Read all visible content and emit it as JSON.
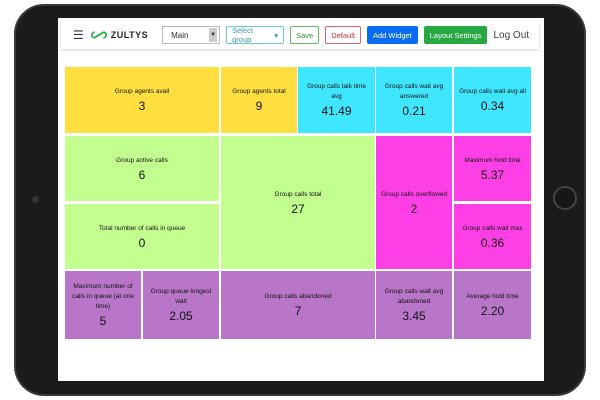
{
  "toolbar": {
    "brand": "ZULTYS",
    "view_select": "Main",
    "group_select": "Select group",
    "save": "Save",
    "default": "Default",
    "add_widget": "Add Widget",
    "layout_settings": "Layout Settings",
    "logout": "Log Out"
  },
  "widgets": [
    {
      "label": "Group agents avail",
      "value": "3",
      "color": "#ffdf3f"
    },
    {
      "label": "Group agents total",
      "value": "9",
      "color": "#ffdf3f"
    },
    {
      "label": "Group calls talk time avg",
      "value": "41.49",
      "color": "#3fe6ff"
    },
    {
      "label": "Group calls wait avg answered",
      "value": "0.21",
      "color": "#3fe6ff"
    },
    {
      "label": "Group calls wait avg all",
      "value": "0.34",
      "color": "#3fe6ff"
    },
    {
      "label": "Group active calls",
      "value": "6",
      "color": "#c2ff8f"
    },
    {
      "label": "Total number of calls in queue",
      "value": "0",
      "color": "#c2ff8f"
    },
    {
      "label": "Group calls total",
      "value": "27",
      "color": "#c2ff8f"
    },
    {
      "label": "Group calls overflowed",
      "value": "2",
      "color": "#ff3fe6"
    },
    {
      "label": "Maximum hold time",
      "value": "5.37",
      "color": "#ff3fe6"
    },
    {
      "label": "Group calls wait max",
      "value": "0.36",
      "color": "#ff3fe6"
    },
    {
      "label": "Maximum number of calls in queue (at one time)",
      "value": "5",
      "color": "#b976c9"
    },
    {
      "label": "Group queue longest wait",
      "value": "2.05",
      "color": "#b976c9"
    },
    {
      "label": "Group calls abandoned",
      "value": "7",
      "color": "#b976c9"
    },
    {
      "label": "Group calls wait avg abandoned",
      "value": "3.45",
      "color": "#b976c9"
    },
    {
      "label": "Average hold time",
      "value": "2.20",
      "color": "#b976c9"
    }
  ]
}
